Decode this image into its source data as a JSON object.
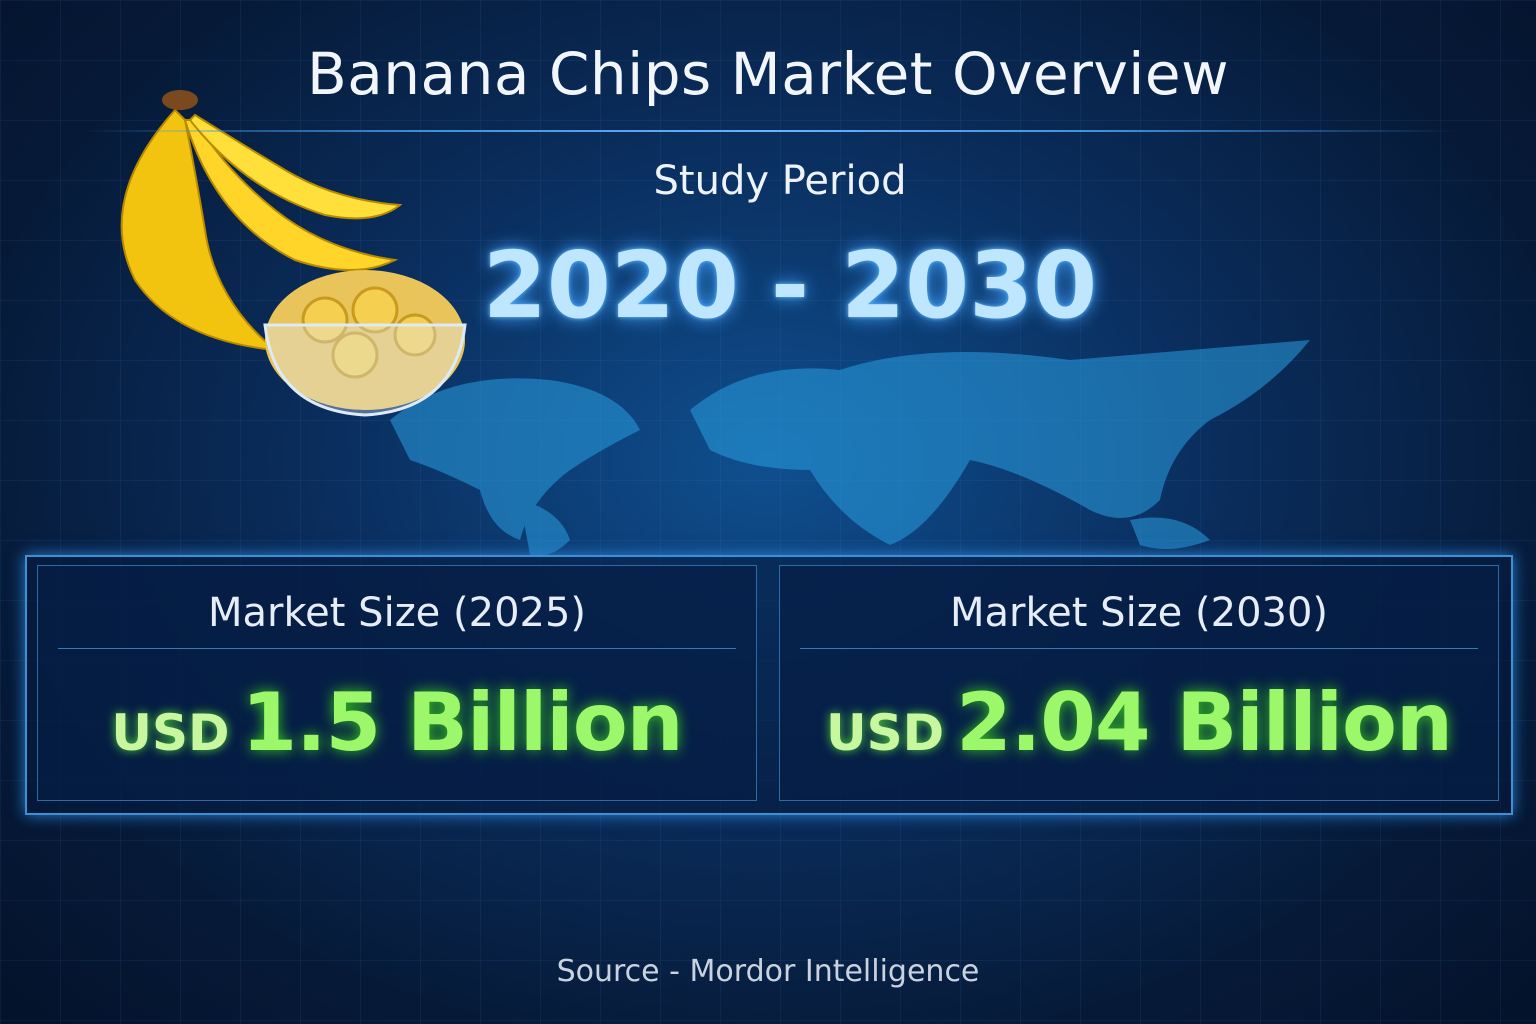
{
  "title": "Banana Chips Market Overview",
  "study_period": {
    "label": "Study Period",
    "value": "2020 - 2030"
  },
  "cards": [
    {
      "label": "Market Size (2025)",
      "currency": "USD",
      "value": "1.5 Billion"
    },
    {
      "label": "Market Size (2030)",
      "currency": "USD",
      "value": "2.04 Billion"
    }
  ],
  "source": "Source - Mordor Intelligence",
  "colors": {
    "background": "#061a38",
    "accent_blue": "#3d8fd6",
    "value_green": "#9df76a",
    "period_blue": "#bfe6ff"
  },
  "icons": [
    "banana-bunch-illustration",
    "banana-chips-bowl-illustration",
    "world-map-illustration"
  ]
}
